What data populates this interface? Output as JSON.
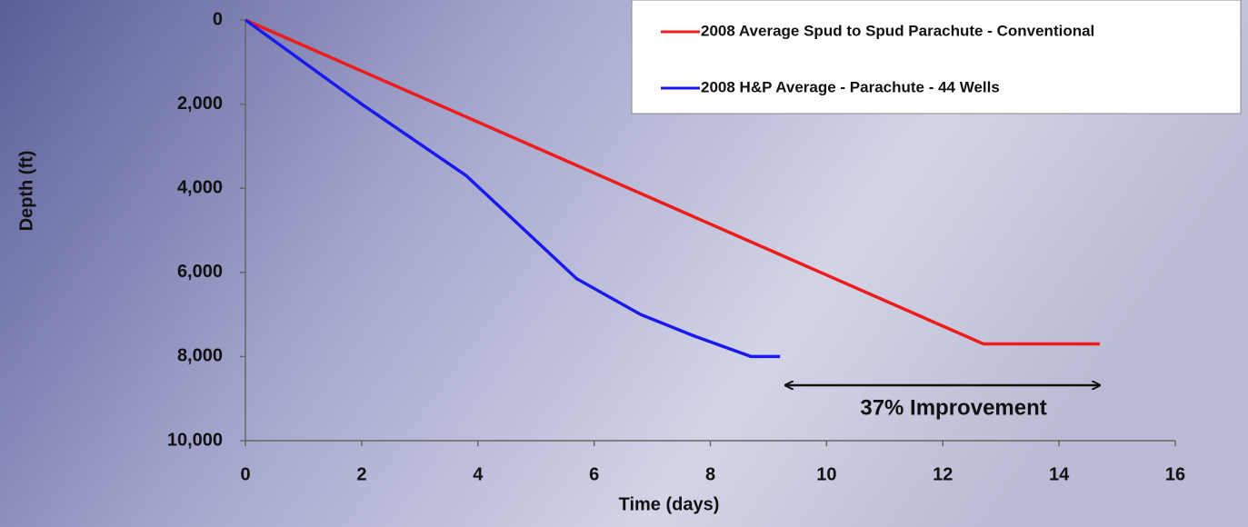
{
  "chart_data": {
    "type": "line",
    "x_label": "Time (days)",
    "y_label": "Depth (ft)",
    "annotation": "37% Improvement",
    "xlim": [
      0,
      16
    ],
    "xticks": [
      0,
      2,
      4,
      6,
      8,
      10,
      12,
      14,
      16
    ],
    "ylim": [
      0,
      10000
    ],
    "y_inverted": true,
    "yticks": [
      0,
      {
        "value": 2000,
        "label": "2,000"
      },
      {
        "value": 4000,
        "label": "4,000"
      },
      {
        "value": 6000,
        "label": "6,000"
      },
      {
        "value": 8000,
        "label": "8,000"
      },
      {
        "value": 10000,
        "label": "10,000"
      }
    ],
    "legend": "top-right",
    "series": [
      {
        "name": "2008 Average Spud to Spud Parachute - Conventional",
        "color": "#ee1c1c",
        "x": [
          0,
          12.7,
          14.7
        ],
        "values": [
          0,
          7700,
          7700
        ]
      },
      {
        "name": "2008 H&P Average - Parachute - 44 Wells",
        "color": "#1a1aee",
        "x": [
          0,
          2,
          3.8,
          5.7,
          6.8,
          7.7,
          8.7,
          9.2
        ],
        "values": [
          0,
          2000,
          3700,
          6150,
          7000,
          7500,
          8000,
          8000
        ]
      }
    ]
  }
}
